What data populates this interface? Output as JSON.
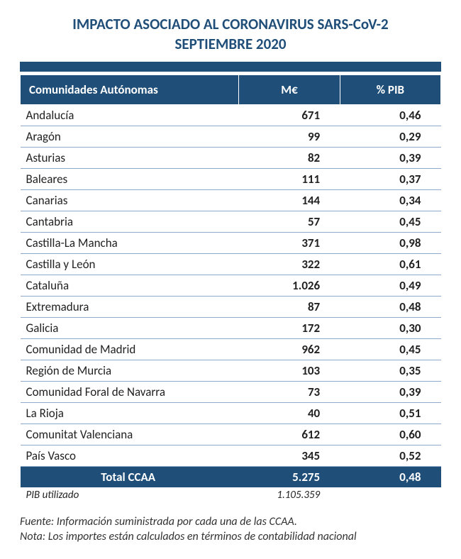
{
  "title_line1": "IMPACTO ASOCIADO AL CORONAVIRUS SARS-CoV-2",
  "title_line2": "SEPTIEMBRE 2020",
  "columns": {
    "region": "Comunidades Autónomas",
    "me": "M€",
    "pib": "% PIB"
  },
  "rows": [
    {
      "name": "Andalucía",
      "me": "671",
      "pib": "0,46"
    },
    {
      "name": "Aragón",
      "me": "99",
      "pib": "0,29"
    },
    {
      "name": "Asturias",
      "me": "82",
      "pib": "0,39"
    },
    {
      "name": "Baleares",
      "me": "111",
      "pib": "0,37"
    },
    {
      "name": "Canarias",
      "me": "144",
      "pib": "0,34"
    },
    {
      "name": "Cantabria",
      "me": "57",
      "pib": "0,45"
    },
    {
      "name": "Castilla-La Mancha",
      "me": "371",
      "pib": "0,98"
    },
    {
      "name": "Castilla y León",
      "me": "322",
      "pib": "0,61"
    },
    {
      "name": "Cataluña",
      "me": "1.026",
      "pib": "0,49"
    },
    {
      "name": "Extremadura",
      "me": "87",
      "pib": "0,48"
    },
    {
      "name": "Galicia",
      "me": "172",
      "pib": "0,30"
    },
    {
      "name": "Comunidad de Madrid",
      "me": "962",
      "pib": "0,45"
    },
    {
      "name": "Región de Murcia",
      "me": "103",
      "pib": "0,35"
    },
    {
      "name": "Comunidad Foral de Navarra",
      "me": "73",
      "pib": "0,39"
    },
    {
      "name": "La Rioja",
      "me": "40",
      "pib": "0,51"
    },
    {
      "name": "Comunitat Valenciana",
      "me": "612",
      "pib": "0,60"
    },
    {
      "name": "País Vasco",
      "me": "345",
      "pib": "0,52"
    }
  ],
  "total": {
    "name": "Total CCAA",
    "me": "5.275",
    "pib": "0,48"
  },
  "pib_used": {
    "label": "PIB utilizado",
    "value": "1.105.359"
  },
  "footnote_line1": "Fuente: Información suministrada por cada una de las CCAA.",
  "footnote_line2": "Nota: Los importes están calculados en términos de contabilidad nacional",
  "colors": {
    "header_bg": "#1f4e79",
    "header_text": "#ffffff",
    "row_border": "#8ea9c9",
    "title_color": "#1f4e79"
  }
}
